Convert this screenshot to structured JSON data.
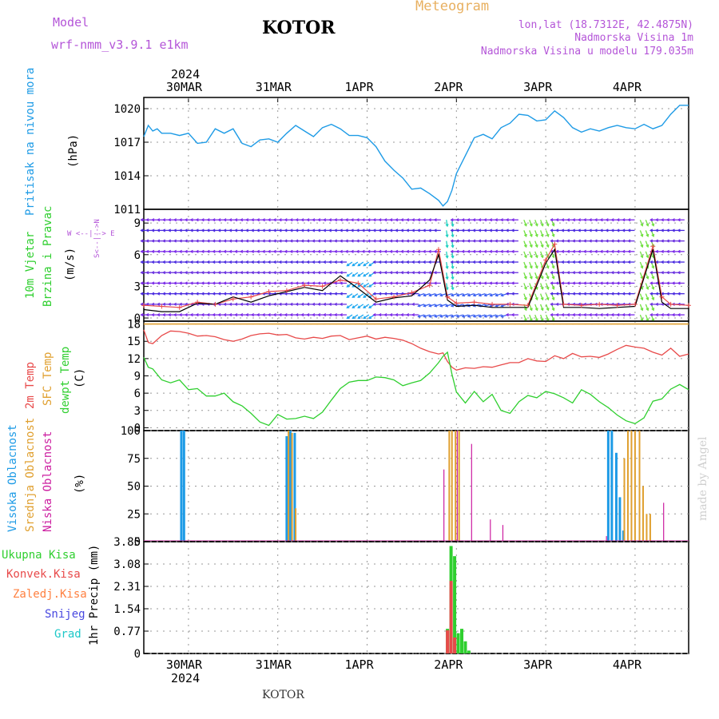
{
  "header": {
    "model_label": "Model",
    "model_name": "wrf-nmm_v3.9.1  e1km",
    "station": "KOTOR",
    "meteogram": "Meteogram",
    "coords": "lon,lat (18.7312E, 42.4875N)",
    "altitude": "Nadmorska Visina 1m",
    "model_altitude": "Nadmorska Visina u modelu 179.035m",
    "year_top": "2024",
    "year_bottom": "2024",
    "footer_station": "KOTOR",
    "credit": "made by Angel"
  },
  "colors": {
    "pressure": "#1e9be6",
    "temp": "#e84a4a",
    "sfc": "#e0a030",
    "dewpt": "#2fcf2f",
    "high_cloud": "#1e9be6",
    "mid_cloud": "#e0a030",
    "low_cloud": "#cc1ea0",
    "precip_total": "#2fcf2f",
    "precip_conv": "#e84a4a",
    "accent_purple": "#b455d8"
  },
  "panel_labels": {
    "pressure": {
      "name": "Pritisak na nivou mora",
      "unit": "(hPa)"
    },
    "wind": {
      "name1": "10m Vjetar",
      "name2": "Brzina i Pravac",
      "unit": "(m/s)",
      "compass": "W  <--|-->  E",
      "compass_ns": "S<--|-->N"
    },
    "temp": {
      "t2m": "2m Temp",
      "sfc": "SFC Temp",
      "dew": "dewpt Temp",
      "unit": "(C)"
    },
    "cloud": {
      "high": "Visoka Oblacnost",
      "mid": "Srednja Oblacnost",
      "low": "Niska Oblacnost",
      "unit": "(%)"
    },
    "precip": {
      "total": "Ukupna Kisa",
      "conv": "Konvek.Kisa",
      "frozen": "Zaledj.Kisa",
      "snow": "Snijeg",
      "grad": "Grad",
      "unit": "1hr Precip (mm)"
    }
  },
  "chart_data": [
    {
      "type": "line",
      "name": "pressure",
      "xlabel": "",
      "ylabel": "(hPa)",
      "ylim": [
        1011,
        1021
      ],
      "yticks": [
        1011,
        1014,
        1017,
        1020
      ],
      "x_days": [
        "30MAR",
        "31MAR",
        "1APR",
        "2APR",
        "3APR",
        "4APR"
      ],
      "x_range_days": [
        -0.5,
        5.6
      ],
      "x": [
        -0.5,
        -0.45,
        -0.4,
        -0.35,
        -0.3,
        -0.2,
        -0.1,
        0,
        0.1,
        0.2,
        0.3,
        0.4,
        0.5,
        0.6,
        0.7,
        0.8,
        0.9,
        1.0,
        1.1,
        1.2,
        1.3,
        1.4,
        1.5,
        1.6,
        1.7,
        1.8,
        1.9,
        2.0,
        2.1,
        2.2,
        2.3,
        2.4,
        2.5,
        2.6,
        2.7,
        2.8,
        2.85,
        2.9,
        2.95,
        3.0,
        3.1,
        3.2,
        3.3,
        3.4,
        3.5,
        3.6,
        3.7,
        3.8,
        3.9,
        4.0,
        4.1,
        4.2,
        4.3,
        4.4,
        4.5,
        4.6,
        4.7,
        4.8,
        4.9,
        5.0,
        5.1,
        5.2,
        5.3,
        5.4,
        5.5,
        5.6
      ],
      "values": [
        1017.5,
        1018.5,
        1018,
        1018.2,
        1017.8,
        1017.8,
        1017.6,
        1017.8,
        1016.9,
        1017.0,
        1018.2,
        1017.8,
        1018.2,
        1016.9,
        1016.6,
        1017.2,
        1017.3,
        1017.0,
        1017.8,
        1018.5,
        1018.0,
        1017.5,
        1018.3,
        1018.6,
        1018.2,
        1017.6,
        1017.6,
        1017.4,
        1016.6,
        1015.3,
        1014.5,
        1013.8,
        1012.8,
        1012.9,
        1012.4,
        1011.8,
        1011.3,
        1011.7,
        1012.7,
        1014.2,
        1015.8,
        1017.4,
        1017.7,
        1017.3,
        1018.3,
        1018.7,
        1019.5,
        1019.4,
        1018.9,
        1019.0,
        1019.8,
        1019.2,
        1018.3,
        1017.9,
        1018.2,
        1018.0,
        1018.3,
        1018.5,
        1018.3,
        1018.2,
        1018.6,
        1018.2,
        1018.5,
        1019.5,
        1020.3,
        1020.3
      ]
    },
    {
      "type": "line",
      "name": "wind",
      "xlabel": "",
      "ylabel": "(m/s)",
      "ylim": [
        -0.3,
        10.3
      ],
      "yticks": [
        0,
        3,
        6,
        9
      ],
      "series": [
        {
          "name": "",
          "x": [
            -0.5,
            -0.3,
            -0.1,
            0.1,
            0.3,
            0.5,
            0.7,
            0.9,
            1.1,
            1.3,
            1.5,
            1.7,
            1.9,
            2.1,
            2.3,
            2.5,
            2.7,
            2.8,
            2.9,
            3.0,
            3.2,
            3.4,
            3.6,
            3.8,
            4.0,
            4.1,
            4.2,
            4.4,
            4.6,
            4.8,
            5.0,
            5.2,
            5.3,
            5.4,
            5.6
          ],
          "values": [
            1.2,
            1.1,
            1.0,
            1.5,
            1.3,
            1.8,
            2.0,
            2.5,
            2.6,
            3.1,
            3.0,
            3.6,
            3.3,
            1.8,
            2.0,
            2.4,
            3.1,
            6.5,
            2.0,
            1.4,
            1.5,
            1.3,
            1.3,
            1.2,
            5.5,
            7.0,
            1.3,
            1.2,
            1.3,
            1.2,
            1.3,
            6.8,
            2.0,
            1.3,
            1.2
          ]
        },
        {
          "name": "",
          "x": [
            -0.5,
            -0.3,
            -0.1,
            0.1,
            0.3,
            0.5,
            0.7,
            0.9,
            1.1,
            1.3,
            1.5,
            1.7,
            1.9,
            2.1,
            2.3,
            2.5,
            2.7,
            2.8,
            2.9,
            3.0,
            3.2,
            3.4,
            3.6,
            3.8,
            4.0,
            4.1,
            4.2,
            4.4,
            4.6,
            4.8,
            5.0,
            5.2,
            5.3,
            5.4,
            5.6
          ],
          "values": [
            0.8,
            0.6,
            0.6,
            1.4,
            1.3,
            2.0,
            1.5,
            2.1,
            2.5,
            2.9,
            2.6,
            4.0,
            2.8,
            1.5,
            1.9,
            2.1,
            3.6,
            6.0,
            1.7,
            1.1,
            1.2,
            1.0,
            1.0,
            1.0,
            5.2,
            6.5,
            1.0,
            1.0,
            0.9,
            1.0,
            1.1,
            6.5,
            1.5,
            0.9,
            0.9
          ]
        }
      ]
    },
    {
      "type": "line",
      "name": "temperature",
      "xlabel": "",
      "ylabel": "(C)",
      "ylim": [
        -0.5,
        18.5
      ],
      "yticks": [
        0,
        3,
        6,
        9,
        12,
        15,
        18
      ],
      "x": [
        -0.5,
        -0.45,
        -0.4,
        -0.3,
        -0.2,
        -0.1,
        0,
        0.1,
        0.2,
        0.3,
        0.4,
        0.5,
        0.6,
        0.7,
        0.8,
        0.9,
        1.0,
        1.1,
        1.2,
        1.3,
        1.4,
        1.5,
        1.6,
        1.7,
        1.8,
        1.9,
        2.0,
        2.1,
        2.2,
        2.3,
        2.4,
        2.5,
        2.6,
        2.7,
        2.8,
        2.85,
        2.9,
        2.95,
        3.0,
        3.1,
        3.2,
        3.3,
        3.4,
        3.5,
        3.6,
        3.7,
        3.8,
        3.9,
        4.0,
        4.1,
        4.2,
        4.3,
        4.4,
        4.5,
        4.6,
        4.7,
        4.8,
        4.9,
        5.0,
        5.1,
        5.2,
        5.3,
        5.4,
        5.5,
        5.6
      ],
      "series": [
        {
          "name": "2m Temp",
          "values": [
            17.0,
            14.8,
            14.6,
            16.0,
            16.8,
            16.7,
            16.4,
            15.9,
            16.0,
            15.8,
            15.3,
            15.0,
            15.4,
            16.0,
            16.3,
            16.4,
            16.1,
            16.2,
            15.6,
            15.4,
            15.7,
            15.5,
            15.9,
            16.0,
            15.3,
            15.6,
            15.9,
            15.4,
            15.7,
            15.5,
            15.2,
            14.6,
            13.8,
            13.2,
            12.8,
            13.0,
            11.5,
            10.5,
            10.0,
            10.4,
            10.3,
            10.6,
            10.5,
            10.9,
            11.3,
            11.3,
            12.0,
            11.6,
            11.5,
            12.5,
            12.0,
            12.9,
            12.3,
            12.4,
            12.2,
            12.8,
            13.6,
            14.3,
            14.0,
            13.8,
            13.1,
            12.6,
            13.8,
            12.4,
            12.8
          ]
        },
        {
          "name": "SFC Temp",
          "values": [
            18,
            18,
            18,
            18,
            18,
            18,
            18,
            18,
            18,
            18,
            18,
            18,
            18,
            18,
            18,
            18,
            18,
            18,
            18,
            18,
            18,
            18,
            18,
            18,
            18,
            18,
            18,
            18,
            18,
            18,
            18,
            18,
            18,
            18,
            18,
            18,
            18,
            18,
            18,
            18,
            18,
            18,
            18,
            18,
            18,
            18,
            18,
            18,
            18,
            18,
            18,
            18,
            18,
            18,
            18,
            18,
            18,
            18,
            18,
            18,
            18,
            18,
            18,
            18,
            18
          ]
        },
        {
          "name": "dewpt Temp",
          "values": [
            12.2,
            10.5,
            10.2,
            8.3,
            7.8,
            8.3,
            6.6,
            6.8,
            5.5,
            5.5,
            6.0,
            4.5,
            3.8,
            2.5,
            1.0,
            0.4,
            2.3,
            1.5,
            1.6,
            2.0,
            1.6,
            2.7,
            4.8,
            6.8,
            7.9,
            8.2,
            8.2,
            8.8,
            8.7,
            8.3,
            7.3,
            7.8,
            8.2,
            9.5,
            11.3,
            12.4,
            13.1,
            9.3,
            6.2,
            4.3,
            6.3,
            4.5,
            5.8,
            3.0,
            2.5,
            4.5,
            5.6,
            5.2,
            6.3,
            5.9,
            5.2,
            4.3,
            6.6,
            5.8,
            4.5,
            3.5,
            2.2,
            1.2,
            0.7,
            1.7,
            4.6,
            5.0,
            6.7,
            7.5,
            6.6
          ]
        }
      ]
    },
    {
      "type": "bar",
      "name": "cloud",
      "xlabel": "",
      "ylabel": "(%)",
      "ylim": [
        0,
        100
      ],
      "yticks": [
        0,
        25,
        50,
        75,
        100
      ],
      "series": [
        {
          "name": "Visoka Oblacnost",
          "x": [
            -0.08,
            -0.05,
            1.1,
            1.14,
            1.19,
            4.7,
            4.74,
            4.79,
            4.83,
            4.87
          ],
          "values": [
            100,
            100,
            95,
            100,
            98,
            100,
            100,
            80,
            40,
            10
          ]
        },
        {
          "name": "Srednja Oblacnost",
          "x": [
            1.12,
            1.16,
            1.2,
            2.92,
            2.95,
            2.99,
            3.03,
            4.88,
            4.92,
            4.96,
            5.0,
            5.05,
            5.09,
            5.13,
            5.17
          ],
          "values": [
            100,
            98,
            30,
            100,
            100,
            100,
            100,
            75,
            100,
            100,
            100,
            100,
            50,
            25,
            25
          ]
        },
        {
          "name": "Niska Oblacnost",
          "x": [
            2.86,
            3.01,
            3.17,
            3.38,
            3.52,
            4.68,
            5.32
          ],
          "values": [
            65,
            100,
            88,
            20,
            15,
            5,
            35
          ]
        }
      ]
    },
    {
      "type": "bar",
      "name": "precip",
      "xlabel": "",
      "ylabel": "1hr Precip (mm)",
      "ylim": [
        0,
        3.85
      ],
      "yticks": [
        0,
        0.77,
        1.54,
        2.31,
        3.08,
        3.85
      ],
      "series": [
        {
          "name": "Ukupna Kisa",
          "x": [
            2.9,
            2.94,
            2.98,
            3.02,
            3.06,
            3.1,
            3.14
          ],
          "values": [
            0.85,
            3.7,
            3.35,
            0.7,
            0.85,
            0.42,
            0.1
          ]
        },
        {
          "name": "Konvek.Kisa",
          "x": [
            2.9,
            2.94,
            2.98
          ],
          "values": [
            0.8,
            2.5,
            0.55
          ]
        }
      ]
    }
  ]
}
